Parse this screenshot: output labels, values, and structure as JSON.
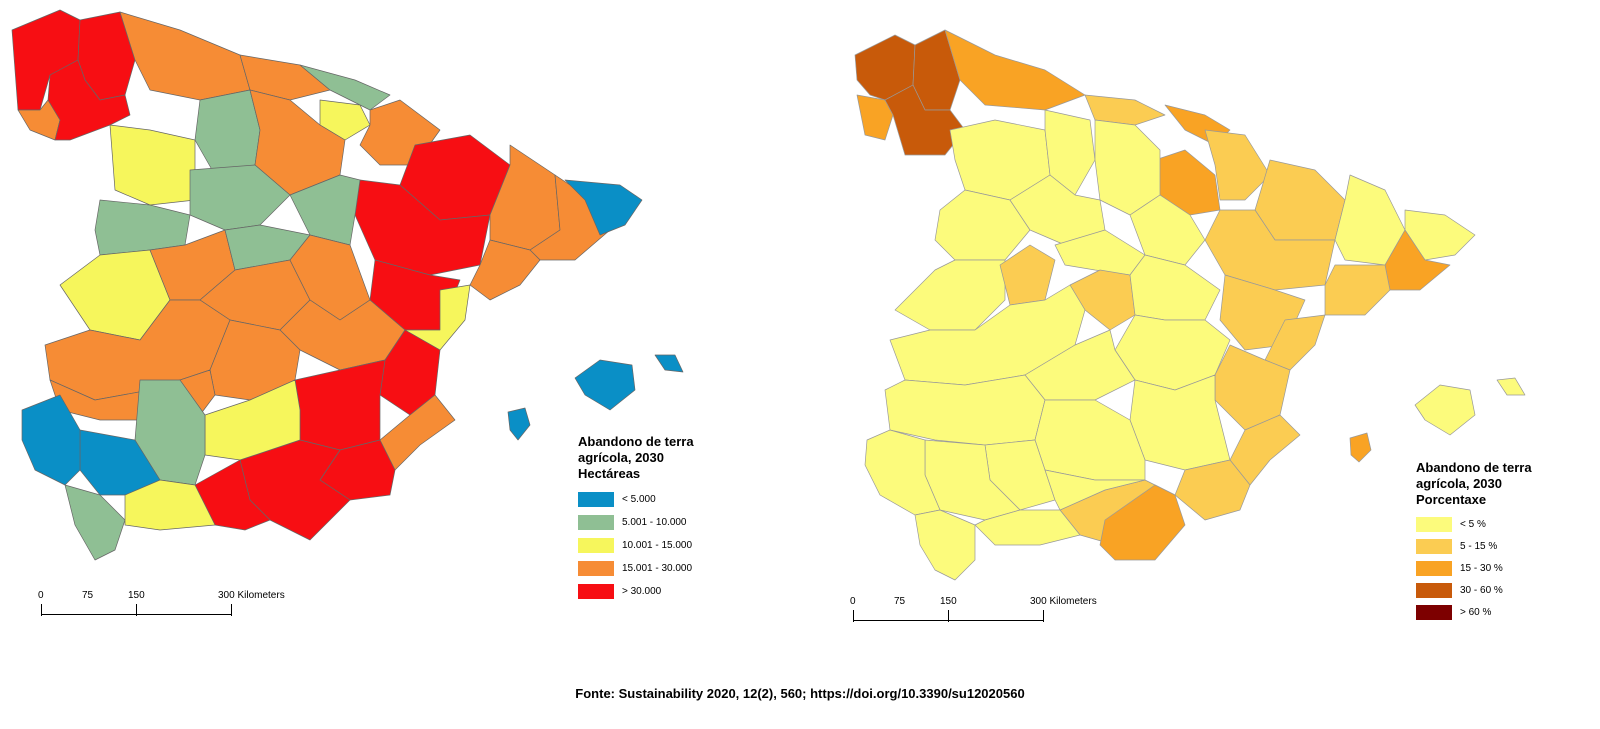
{
  "left_map": {
    "legend": {
      "title_lines": [
        "Abandono de terra",
        "agrícola, 2030",
        "Hectáreas"
      ],
      "items": [
        {
          "label": "< 5.000",
          "color": "#0a8fc6"
        },
        {
          "label": "5.001 - 10.000",
          "color": "#8fbf94"
        },
        {
          "label": "10.001 - 15.000",
          "color": "#f6f65c"
        },
        {
          "label": "15.001 - 30.000",
          "color": "#f68c35"
        },
        {
          "label": "> 30.000",
          "color": "#f70e13"
        }
      ]
    },
    "scalebar": {
      "labels": [
        "0",
        "75",
        "150",
        "300 Kilometers"
      ]
    }
  },
  "right_map": {
    "legend": {
      "title_lines": [
        "Abandono de terra",
        "agrícola, 2030",
        "Porcentaxe"
      ],
      "items": [
        {
          "label": "< 5 %",
          "color": "#fcfb7c"
        },
        {
          "label": "5 - 15 %",
          "color": "#fbcc52"
        },
        {
          "label": "15 - 30 %",
          "color": "#f9a324"
        },
        {
          "label": "30 - 60 %",
          "color": "#c85a0a"
        },
        {
          "label": "> 60 %",
          "color": "#7d0000"
        }
      ]
    },
    "scalebar": {
      "labels": [
        "0",
        "75",
        "150",
        "300 Kilometers"
      ]
    }
  },
  "source_text": "Fonte: Sustainability 2020, 12(2), 560; https://doi.org/10.3390/su12020560"
}
